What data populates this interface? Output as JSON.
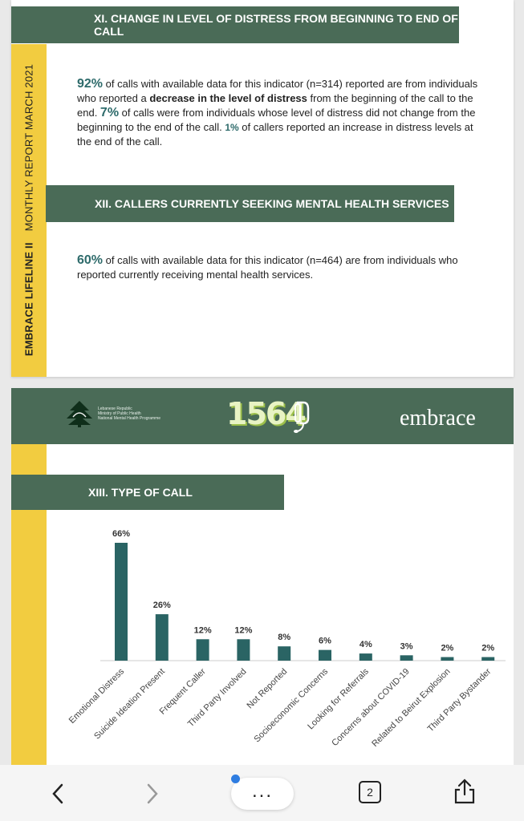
{
  "page1": {
    "side_label_bold": "EMBRACE LIFELINE II",
    "side_label": "MONTHLY REPORT MARCH 2021",
    "section11": {
      "title_line1": "XI. CHANGE IN LEVEL OF DISTRESS FROM BEGINNING TO END OF",
      "title_line2": "CALL",
      "pct1": "92%",
      "t1": " of calls with available data for this indicator (n=314) reported are from individuals who reported a ",
      "t1_bold": "decrease in the level of distress",
      "t2": " from the beginning of the call to the end. ",
      "pct2": "7%",
      "t3": " of calls were from individuals whose level of distress did not change from the beginning to the end of the call.  ",
      "pct3": "1%",
      "t4": " of callers reported an increase in distress levels at the end of the call."
    },
    "section12": {
      "title": "XII. CALLERS CURRENTLY SEEKING MENTAL HEALTH SERVICES",
      "pct": "60%",
      "text": " of calls with available data for this indicator (n=464) are from individuals who reported currently receiving mental health services."
    }
  },
  "page2": {
    "banner": {
      "ministry_line1": "Lebanese Republic",
      "ministry_line2": "Ministry of Public Health",
      "ministry_line3": "National Mental Health Programme",
      "hotline": "1564",
      "brand": "embrace"
    },
    "section13_title": "XIII. TYPE OF CALL"
  },
  "chart_data": {
    "type": "bar",
    "title": "XIII. TYPE OF CALL",
    "categories": [
      "Emotional Distress",
      "Suicide Ideation Present",
      "Frequent Caller",
      "Third Party Involved",
      "Not Reported",
      "Socioeconomic Concerns",
      "Looking for Referrals",
      "Concerns about COVID-19",
      "Related to Beirut Explosion",
      "Third Party Bystander"
    ],
    "values": [
      66,
      26,
      12,
      12,
      8,
      6,
      4,
      3,
      2,
      2
    ],
    "value_labels": [
      "66%",
      "26%",
      "12%",
      "12%",
      "8%",
      "6%",
      "4%",
      "3%",
      "2%",
      "2%"
    ],
    "bar_color": "#2a6464",
    "ylim": [
      0,
      70
    ],
    "grid": false,
    "legend": "none"
  },
  "browser": {
    "tab_count": "2",
    "more_label": "..."
  },
  "colors": {
    "green": "#4a6b57",
    "yellow": "#f2cc40",
    "teal": "#2e6b6b"
  }
}
